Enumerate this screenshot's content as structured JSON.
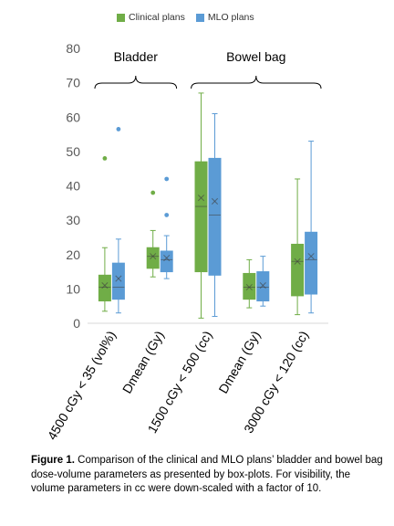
{
  "chart_data": {
    "type": "box",
    "ylim": [
      0,
      80
    ],
    "yticks": [
      0,
      10,
      20,
      30,
      40,
      50,
      60,
      70,
      80
    ],
    "grid": false,
    "legend_placement": "top",
    "categories": [
      "4500 cGy < 35 (vol%)",
      "Dmean  (Gy)",
      "1500 cGy < 500 (cc)",
      "Dmean (Gy)",
      "3000 cGy < 120 (cc)"
    ],
    "groups": [
      {
        "label": "Bladder",
        "categories": [
          0,
          1
        ]
      },
      {
        "label": "Bowel bag",
        "categories": [
          2,
          3,
          4
        ]
      }
    ],
    "series": [
      {
        "name": "Clinical plans",
        "color": "#70ad47",
        "boxes": [
          {
            "min": 3.5,
            "q1": 6.5,
            "median": 10.5,
            "q3": 14,
            "max": 22,
            "mean": 11,
            "outliers": [
              48
            ]
          },
          {
            "min": 13.5,
            "q1": 16,
            "median": 19.5,
            "q3": 22,
            "max": 27,
            "mean": 19.5,
            "outliers": [
              38
            ]
          },
          {
            "min": 1.5,
            "q1": 15,
            "median": 34,
            "q3": 47,
            "max": 67,
            "mean": 36.5,
            "outliers": []
          },
          {
            "min": 4.5,
            "q1": 7,
            "median": 10.5,
            "q3": 14.5,
            "max": 18.5,
            "mean": 10.5,
            "outliers": []
          },
          {
            "min": 2.5,
            "q1": 8,
            "median": 18,
            "q3": 23,
            "max": 42,
            "mean": 18,
            "outliers": []
          }
        ]
      },
      {
        "name": "MLO plans",
        "color": "#5b9bd5",
        "boxes": [
          {
            "min": 3,
            "q1": 7,
            "median": 10.5,
            "q3": 17.5,
            "max": 24.5,
            "mean": 13,
            "outliers": [
              56.5
            ]
          },
          {
            "min": 13,
            "q1": 15,
            "median": 18.5,
            "q3": 21,
            "max": 25.5,
            "mean": 19,
            "outliers": [
              31.5,
              42
            ]
          },
          {
            "min": 2,
            "q1": 14,
            "median": 31.5,
            "q3": 48,
            "max": 61,
            "mean": 35.5,
            "outliers": []
          },
          {
            "min": 5,
            "q1": 6.5,
            "median": 10.5,
            "q3": 15,
            "max": 19.5,
            "mean": 11,
            "outliers": []
          },
          {
            "min": 3,
            "q1": 8.5,
            "median": 18.5,
            "q3": 26.5,
            "max": 53,
            "mean": 19.5,
            "outliers": []
          }
        ]
      }
    ]
  },
  "caption": {
    "bold": "Figure 1.",
    "text": " Comparison of the clinical and MLO plans’ bladder and bowel bag dose-volume parameters as presented by box-plots. For visibility, the volume parameters in cc were down-scaled with a factor of 10."
  }
}
